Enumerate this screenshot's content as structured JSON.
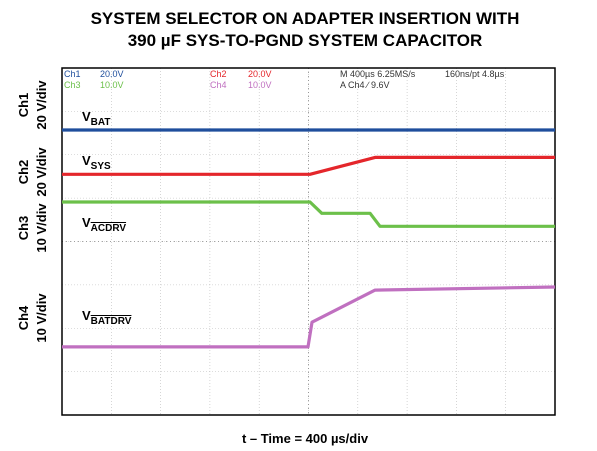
{
  "chart_data": {
    "type": "line",
    "title": [
      "SYSTEM SELECTOR ON ADAPTER INSERTION WITH",
      "390 µF SYS-TO-PGND SYSTEM CAPACITOR"
    ],
    "xlabel": "t – Time = 400 µs/div",
    "xlim": [
      0,
      10
    ],
    "ylim": [
      0,
      8
    ],
    "grid": true,
    "scope_header": {
      "ch1": "Ch1",
      "ch1_scale": "20.0V",
      "ch2": "Ch2",
      "ch2_scale": "20.0V",
      "ch3": "Ch3",
      "ch3_scale": "10.0V",
      "ch4": "Ch4",
      "ch4_scale": "10.0V",
      "timebase": "M 400µs 6.25MS/s",
      "record": "160ns/pt 4.8µs",
      "trigger": "A  Ch4  ∕  9.6V"
    },
    "channel_axis_labels": [
      {
        "name": "Ch1",
        "scale": "20 V/div"
      },
      {
        "name": "Ch2",
        "scale": "20 V/div"
      },
      {
        "name": "Ch3",
        "scale": "10 V/div"
      },
      {
        "name": "Ch4",
        "scale": "10 V/div"
      }
    ],
    "series": [
      {
        "name": "V",
        "sub": "BAT",
        "overline": false,
        "color": "#1f4e9c",
        "x": [
          0,
          10
        ],
        "values": [
          6.57,
          6.57
        ]
      },
      {
        "name": "V",
        "sub": "SYS",
        "overline": false,
        "color": "#e4262b",
        "x": [
          0,
          5.03,
          6.35,
          10
        ],
        "values": [
          5.55,
          5.55,
          5.94,
          5.94
        ]
      },
      {
        "name": "V",
        "sub": "ACDRV",
        "overline": true,
        "color": "#6cc04a",
        "x": [
          0,
          5.03,
          5.27,
          6.25,
          6.45,
          10
        ],
        "values": [
          4.91,
          4.91,
          4.65,
          4.65,
          4.35,
          4.35
        ]
      },
      {
        "name": "V",
        "sub": "BATDRV",
        "overline": true,
        "color": "#c070c0",
        "x": [
          0,
          4.99,
          5.07,
          6.35,
          10
        ],
        "values": [
          1.57,
          1.57,
          2.14,
          2.88,
          2.95
        ]
      }
    ]
  }
}
